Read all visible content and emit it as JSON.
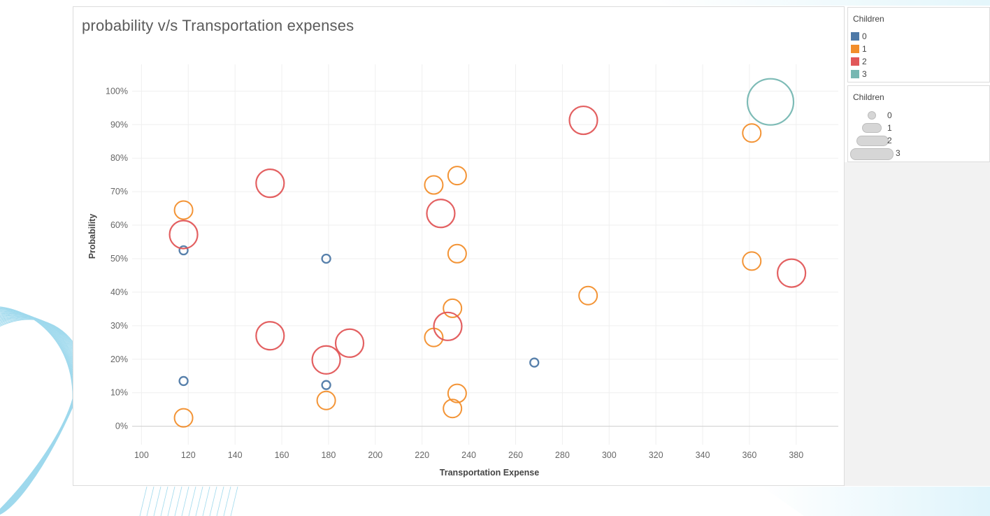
{
  "chart_data": {
    "type": "scatter",
    "title": "probability v/s Transportation expenses",
    "xlabel": "Transportation Expense",
    "ylabel": "Probability",
    "xlim": [
      96,
      398
    ],
    "ylim": [
      -5.5,
      108
    ],
    "x_ticks": [
      100,
      120,
      140,
      160,
      180,
      200,
      220,
      240,
      260,
      280,
      300,
      320,
      340,
      360,
      380
    ],
    "y_ticks": [
      0,
      10,
      20,
      30,
      40,
      50,
      60,
      70,
      80,
      90,
      100
    ],
    "y_tick_labels": [
      "0%",
      "10%",
      "20%",
      "30%",
      "40%",
      "50%",
      "60%",
      "70%",
      "80%",
      "90%",
      "100%"
    ],
    "grid": true,
    "series": [
      {
        "children": 0,
        "color": "#4e79a7",
        "points": [
          {
            "x": 118,
            "y": 52.5
          },
          {
            "x": 179,
            "y": 50
          },
          {
            "x": 118,
            "y": 13.5
          },
          {
            "x": 179,
            "y": 12.3
          },
          {
            "x": 268,
            "y": 19
          }
        ]
      },
      {
        "children": 1,
        "color": "#f28e2b",
        "points": [
          {
            "x": 118,
            "y": 64.5
          },
          {
            "x": 225,
            "y": 72
          },
          {
            "x": 235,
            "y": 74.8
          },
          {
            "x": 361,
            "y": 87.5
          },
          {
            "x": 235,
            "y": 51.5
          },
          {
            "x": 361,
            "y": 49.3
          },
          {
            "x": 291,
            "y": 39
          },
          {
            "x": 233,
            "y": 35.2
          },
          {
            "x": 225,
            "y": 26.5
          },
          {
            "x": 179,
            "y": 7.7
          },
          {
            "x": 235,
            "y": 9.8
          },
          {
            "x": 233,
            "y": 5.3
          },
          {
            "x": 118,
            "y": 2.5
          }
        ]
      },
      {
        "children": 2,
        "color": "#e15759",
        "points": [
          {
            "x": 155,
            "y": 72.5
          },
          {
            "x": 118,
            "y": 57.2
          },
          {
            "x": 228,
            "y": 63.5
          },
          {
            "x": 289,
            "y": 91.3
          },
          {
            "x": 378,
            "y": 45.7
          },
          {
            "x": 155,
            "y": 27
          },
          {
            "x": 231,
            "y": 29.8
          },
          {
            "x": 189,
            "y": 24.8
          },
          {
            "x": 179,
            "y": 19.8
          }
        ]
      },
      {
        "children": 3,
        "color": "#76b7b2",
        "points": [
          {
            "x": 369,
            "y": 96.8
          }
        ]
      }
    ]
  },
  "legend_color": {
    "title": "Children",
    "items": [
      {
        "label": "0",
        "color": "#4e79a7"
      },
      {
        "label": "1",
        "color": "#f28e2b"
      },
      {
        "label": "2",
        "color": "#e15759"
      },
      {
        "label": "3",
        "color": "#76b7b2"
      }
    ]
  },
  "legend_size": {
    "title": "Children",
    "items": [
      {
        "label": "0"
      },
      {
        "label": "1"
      },
      {
        "label": "2"
      },
      {
        "label": "3"
      }
    ]
  }
}
